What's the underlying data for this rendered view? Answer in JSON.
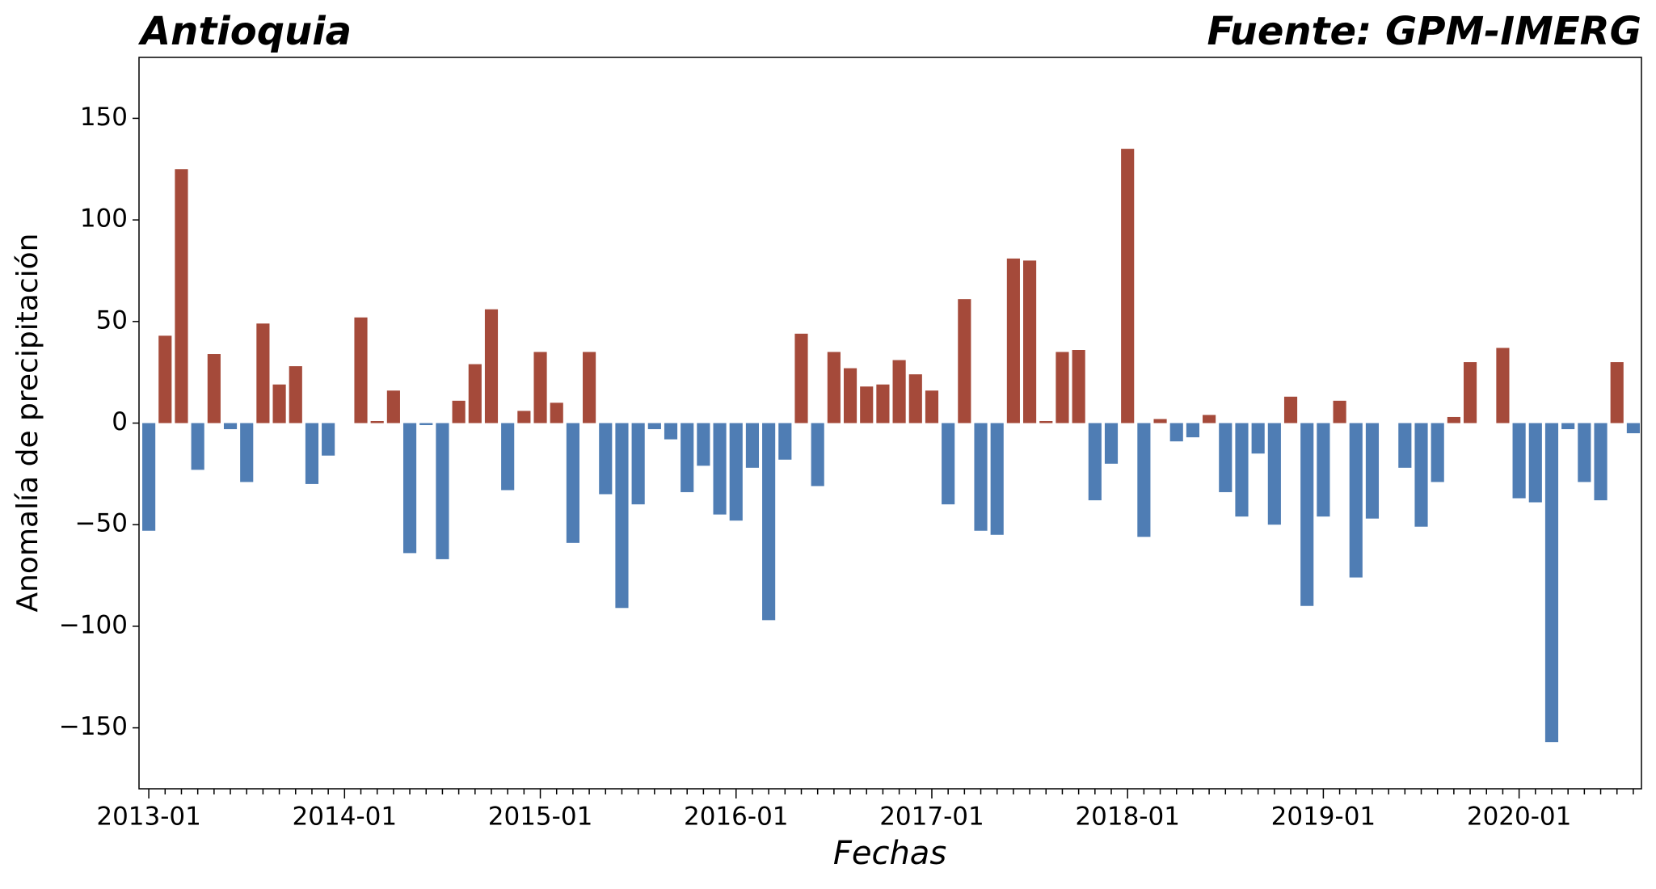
{
  "chart_data": {
    "type": "bar",
    "title": "Antioquia",
    "source": "Fuente: GPM-IMERG",
    "x_label": "Fechas",
    "y_label": "Anomalía de precipitación",
    "categories": [
      "2013-01",
      null,
      null,
      null,
      null,
      null,
      null,
      null,
      null,
      null,
      null,
      null,
      "2014-01",
      null,
      null,
      null,
      null,
      null,
      null,
      null,
      null,
      null,
      null,
      null,
      "2015-01",
      null,
      null,
      null,
      null,
      null,
      null,
      null,
      null,
      null,
      null,
      null,
      "2016-01",
      null,
      null,
      null,
      null,
      null,
      null,
      null,
      null,
      null,
      null,
      null,
      "2017-01",
      null,
      null,
      null,
      null,
      null,
      null,
      null,
      null,
      null,
      null,
      null,
      "2018-01",
      null,
      null,
      null,
      null,
      null,
      null,
      null,
      null,
      null,
      null,
      null,
      "2019-01",
      null,
      null,
      null,
      null,
      null,
      null,
      null,
      null,
      null,
      null,
      null,
      "2020-01",
      null,
      null,
      null,
      null,
      null,
      null,
      null
    ],
    "values": [
      -53,
      43,
      125,
      -23,
      34,
      -3,
      -29,
      49,
      19,
      28,
      -30,
      -16,
      0,
      52,
      1,
      16,
      -64,
      -1,
      -67,
      11,
      29,
      56,
      -33,
      6,
      35,
      10,
      -59,
      35,
      -35,
      -91,
      -40,
      -3,
      -8,
      -34,
      -21,
      -45,
      -48,
      -22,
      -97,
      -18,
      44,
      -31,
      35,
      27,
      18,
      19,
      31,
      24,
      16,
      -40,
      61,
      -53,
      -55,
      81,
      80,
      1,
      35,
      36,
      -38,
      -20,
      135,
      -56,
      2,
      -9,
      -7,
      4,
      -34,
      -46,
      -15,
      -50,
      13,
      -90,
      -46,
      11,
      -76,
      -47,
      0,
      -22,
      -51,
      -29,
      3,
      30,
      0,
      37,
      -37,
      -39,
      -157,
      -3,
      -29,
      -38,
      30,
      -5
    ],
    "positive_color": "#a54a3a",
    "negative_color": "#4f7db4",
    "ylim": [
      -180,
      180
    ],
    "yticks": [
      {
        "value": -150,
        "label": "−150"
      },
      {
        "value": -100,
        "label": "−100"
      },
      {
        "value": -50,
        "label": "−50"
      },
      0,
      50,
      100,
      150
    ],
    "grid": false
  }
}
